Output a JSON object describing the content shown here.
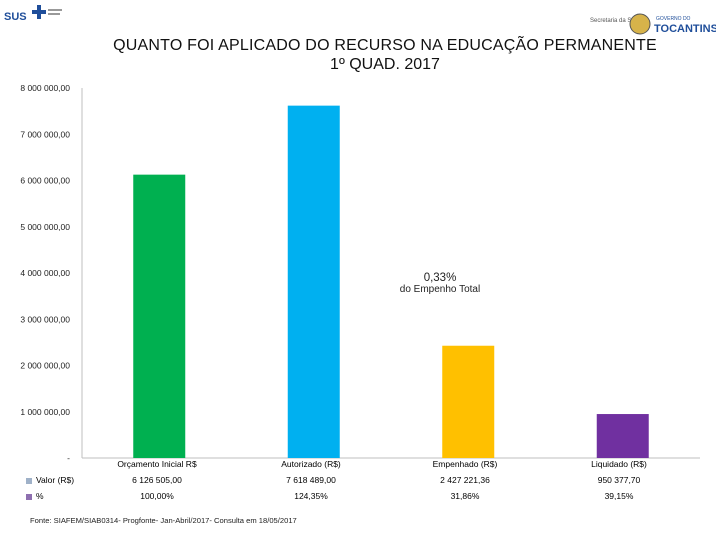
{
  "header": {
    "left_logo_text": "SUS",
    "right_logo_small": "Secretaria da Saúde",
    "right_logo_brand": "TOCANTINS",
    "right_logo_gov": "GOVERNO DO"
  },
  "chart_data": {
    "type": "bar",
    "title": "QUANTO FOI APLICADO DO RECURSO NA EDUCAÇÃO PERMANENTE",
    "subtitle": "1º QUAD. 2017",
    "categories": [
      "Orçamento Inicial R$",
      "Autorizado (R$)",
      "Empenhado (R$)",
      "Liquidado (R$)"
    ],
    "values": [
      6126505.0,
      7618489.0,
      2427221.36,
      950377.7
    ],
    "bar_colors": [
      "#00b050",
      "#00b0f0",
      "#ffc000",
      "#7030a0"
    ],
    "ylim": [
      0,
      8000000
    ],
    "yticks": [
      0,
      1000000,
      2000000,
      3000000,
      4000000,
      5000000,
      6000000,
      7000000,
      8000000
    ],
    "ytick_labels": [
      "-",
      "1 000 000,00",
      "2 000 000,00",
      "3 000 000,00",
      "4 000 000,00",
      "5 000 000,00",
      "6 000 000,00",
      "7 000 000,00",
      "8 000 000,00"
    ],
    "grid": false,
    "annotation": {
      "pct": "0,33%",
      "text": "do Empenho Total"
    },
    "data_table": {
      "rows": [
        {
          "label": "Valor (R$)",
          "swatch": "#9fb1c8",
          "values": [
            "6 126 505,00",
            "7 618 489,00",
            "2 427 221,36",
            "950 377,70"
          ]
        },
        {
          "label": "%",
          "swatch": "#8e6fb0",
          "values": [
            "100,00%",
            "124,35%",
            "31,86%",
            "39,15%"
          ]
        }
      ]
    }
  },
  "footer": {
    "source": "Fonte: SIAFEM/SIAB0314- Progfonte- Jan-Abril/2017- Consulta em 18/05/2017"
  }
}
